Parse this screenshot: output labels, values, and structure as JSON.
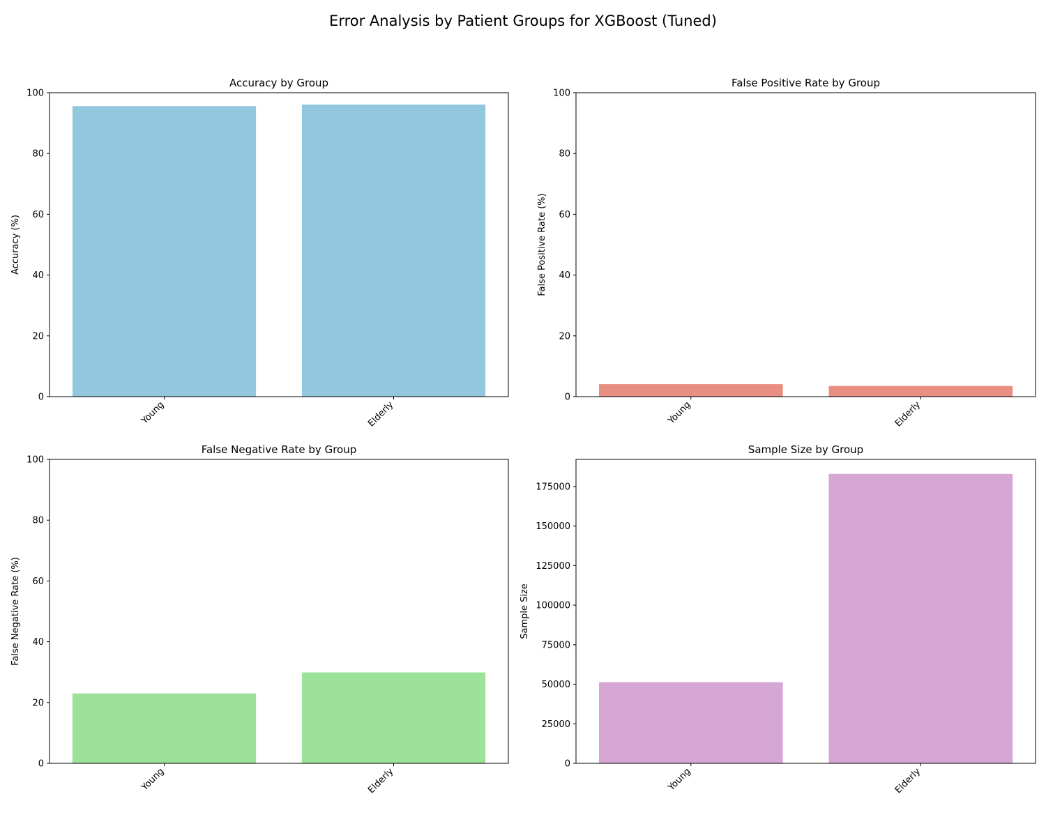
{
  "figure": {
    "title": "Error Analysis by Patient Groups for XGBoost (Tuned)"
  },
  "chart_data": [
    {
      "type": "bar",
      "title": "Accuracy by Group",
      "xlabel": "",
      "ylabel": "Accuracy (%)",
      "categories": [
        "Young",
        "Elderly"
      ],
      "values": [
        95.6,
        96.1
      ],
      "ylim": [
        0,
        100
      ],
      "yticks": [
        0,
        20,
        40,
        60,
        80,
        100
      ],
      "color": "#92c8dd",
      "grid": false
    },
    {
      "type": "bar",
      "title": "False Positive Rate by Group",
      "xlabel": "",
      "ylabel": "False Positive Rate (%)",
      "categories": [
        "Young",
        "Elderly"
      ],
      "values": [
        4.1,
        3.5
      ],
      "ylim": [
        0,
        100
      ],
      "yticks": [
        0,
        20,
        40,
        60,
        80,
        100
      ],
      "color": "#e88e82",
      "grid": false
    },
    {
      "type": "bar",
      "title": "False Negative Rate by Group",
      "xlabel": "",
      "ylabel": "False Negative Rate (%)",
      "categories": [
        "Young",
        "Elderly"
      ],
      "values": [
        23.0,
        29.9
      ],
      "ylim": [
        0,
        100
      ],
      "yticks": [
        0,
        20,
        40,
        60,
        80,
        100
      ],
      "color": "#9de29b",
      "grid": false
    },
    {
      "type": "bar",
      "title": "Sample Size by Group",
      "xlabel": "",
      "ylabel": "Sample Size",
      "categories": [
        "Young",
        "Elderly"
      ],
      "values": [
        51300,
        183000
      ],
      "ylim": [
        0,
        192150
      ],
      "yticks": [
        0,
        25000,
        50000,
        75000,
        100000,
        125000,
        150000,
        175000
      ],
      "color": "#d6a7d5",
      "grid": false
    }
  ]
}
